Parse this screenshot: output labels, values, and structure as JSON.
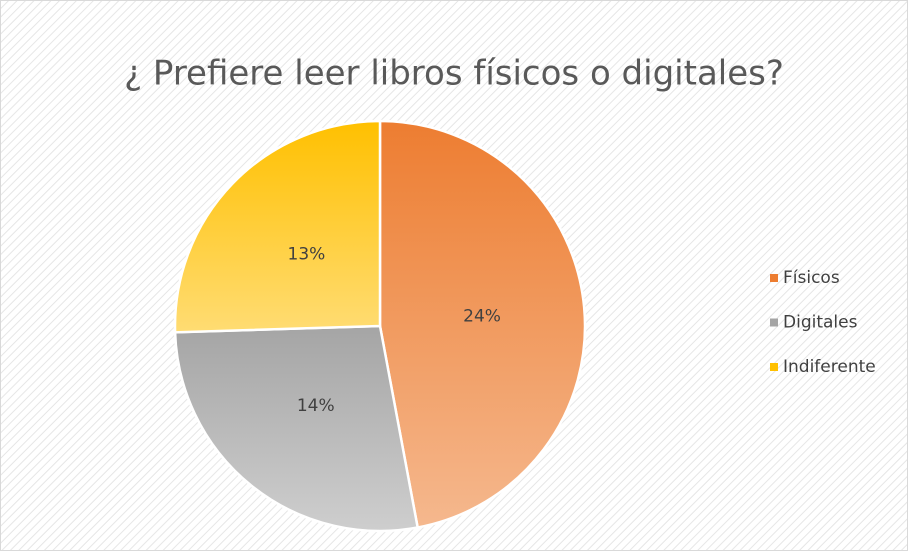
{
  "chart_data": {
    "type": "pie",
    "title": "¿ Prefiere leer libros físicos o digitales?",
    "categories": [
      "Físicos",
      "Digitales",
      "Indiferente"
    ],
    "values": [
      24,
      14,
      13
    ],
    "value_labels": [
      "24%",
      "14%",
      "13%"
    ],
    "colors": [
      "#ED7D31",
      "#A5A5A5",
      "#FFC000"
    ],
    "legend": "right"
  }
}
